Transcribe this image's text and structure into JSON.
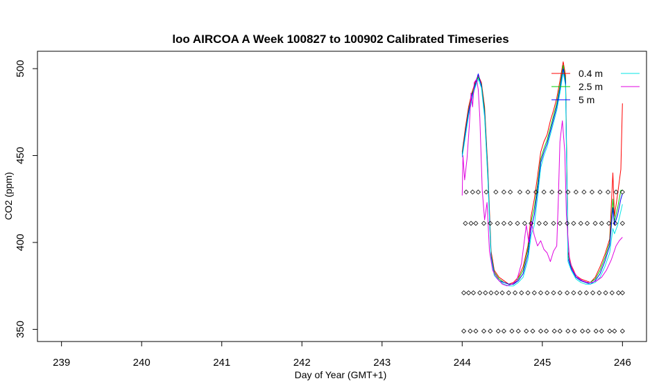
{
  "chart_data": {
    "type": "line",
    "title": "loo AIRCOA A  Week 100827 to 100902  Calibrated Timeseries",
    "xlabel": "Day of Year (GMT+1)",
    "ylabel": "CO2 (ppm)",
    "xlim": [
      238.7,
      246.3
    ],
    "ylim": [
      343,
      510
    ],
    "x_ticks": [
      239,
      240,
      241,
      242,
      243,
      244,
      245,
      246
    ],
    "y_ticks": [
      350,
      400,
      450,
      500
    ],
    "grid": false,
    "legend_position": "top-right",
    "legend": [
      {
        "name": "0.4 m",
        "color": "#ff0000"
      },
      {
        "name": "2.5 m",
        "color": "#00cd00"
      },
      {
        "name": "5 m",
        "color": "#0000ff"
      },
      {
        "name": "",
        "color": "#00e5e5"
      },
      {
        "name": "",
        "color": "#e000e0"
      }
    ],
    "series": [
      {
        "name": "0.4 m",
        "color": "#ff0000",
        "points": [
          [
            244.0,
            452
          ],
          [
            244.04,
            466
          ],
          [
            244.08,
            478
          ],
          [
            244.12,
            486
          ],
          [
            244.16,
            492
          ],
          [
            244.2,
            496
          ],
          [
            244.24,
            492
          ],
          [
            244.28,
            478
          ],
          [
            244.32,
            442
          ],
          [
            244.36,
            395
          ],
          [
            244.4,
            384
          ],
          [
            244.46,
            380
          ],
          [
            244.52,
            378
          ],
          [
            244.58,
            376
          ],
          [
            244.64,
            377
          ],
          [
            244.7,
            380
          ],
          [
            244.76,
            386
          ],
          [
            244.82,
            398
          ],
          [
            244.86,
            415
          ],
          [
            244.9,
            425
          ],
          [
            244.94,
            438
          ],
          [
            244.98,
            452
          ],
          [
            245.02,
            458
          ],
          [
            245.06,
            462
          ],
          [
            245.1,
            470
          ],
          [
            245.14,
            476
          ],
          [
            245.18,
            483
          ],
          [
            245.22,
            493
          ],
          [
            245.26,
            504
          ],
          [
            245.29,
            496
          ],
          [
            245.32,
            395
          ],
          [
            245.36,
            387
          ],
          [
            245.42,
            381
          ],
          [
            245.48,
            379
          ],
          [
            245.54,
            378
          ],
          [
            245.6,
            377
          ],
          [
            245.66,
            380
          ],
          [
            245.72,
            386
          ],
          [
            245.78,
            393
          ],
          [
            245.84,
            402
          ],
          [
            245.88,
            440
          ],
          [
            245.9,
            415
          ],
          [
            245.94,
            428
          ],
          [
            245.98,
            442
          ],
          [
            246.0,
            480
          ]
        ]
      },
      {
        "name": "2.5 m",
        "color": "#00cd00",
        "points": [
          [
            244.0,
            451
          ],
          [
            244.04,
            464
          ],
          [
            244.08,
            476
          ],
          [
            244.12,
            485
          ],
          [
            244.16,
            491
          ],
          [
            244.2,
            495
          ],
          [
            244.24,
            491
          ],
          [
            244.28,
            476
          ],
          [
            244.32,
            440
          ],
          [
            244.36,
            393
          ],
          [
            244.4,
            383
          ],
          [
            244.46,
            379
          ],
          [
            244.52,
            377
          ],
          [
            244.58,
            376
          ],
          [
            244.64,
            376
          ],
          [
            244.7,
            379
          ],
          [
            244.76,
            384
          ],
          [
            244.82,
            396
          ],
          [
            244.86,
            412
          ],
          [
            244.9,
            420
          ],
          [
            244.94,
            433
          ],
          [
            244.98,
            448
          ],
          [
            245.02,
            454
          ],
          [
            245.06,
            459
          ],
          [
            245.1,
            466
          ],
          [
            245.14,
            473
          ],
          [
            245.18,
            480
          ],
          [
            245.22,
            490
          ],
          [
            245.26,
            502
          ],
          [
            245.29,
            494
          ],
          [
            245.32,
            393
          ],
          [
            245.36,
            386
          ],
          [
            245.42,
            380
          ],
          [
            245.48,
            378
          ],
          [
            245.54,
            377
          ],
          [
            245.6,
            377
          ],
          [
            245.66,
            379
          ],
          [
            245.72,
            384
          ],
          [
            245.78,
            391
          ],
          [
            245.84,
            400
          ],
          [
            245.88,
            425
          ],
          [
            245.9,
            412
          ],
          [
            245.94,
            420
          ],
          [
            245.98,
            430
          ],
          [
            246.0,
            430
          ]
        ]
      },
      {
        "name": "5 m",
        "color": "#0000ff",
        "points": [
          [
            244.0,
            450
          ],
          [
            244.04,
            463
          ],
          [
            244.08,
            475
          ],
          [
            244.12,
            484
          ],
          [
            244.16,
            490
          ],
          [
            244.2,
            497
          ],
          [
            244.24,
            490
          ],
          [
            244.28,
            474
          ],
          [
            244.32,
            438
          ],
          [
            244.36,
            392
          ],
          [
            244.4,
            382
          ],
          [
            244.46,
            378
          ],
          [
            244.52,
            377
          ],
          [
            244.58,
            376
          ],
          [
            244.64,
            376
          ],
          [
            244.7,
            378
          ],
          [
            244.76,
            382
          ],
          [
            244.82,
            393
          ],
          [
            244.86,
            408
          ],
          [
            244.9,
            416
          ],
          [
            244.94,
            430
          ],
          [
            244.98,
            446
          ],
          [
            245.02,
            452
          ],
          [
            245.06,
            457
          ],
          [
            245.1,
            464
          ],
          [
            245.14,
            471
          ],
          [
            245.18,
            478
          ],
          [
            245.22,
            488
          ],
          [
            245.26,
            500
          ],
          [
            245.29,
            492
          ],
          [
            245.32,
            391
          ],
          [
            245.36,
            385
          ],
          [
            245.42,
            380
          ],
          [
            245.48,
            378
          ],
          [
            245.54,
            377
          ],
          [
            245.6,
            376
          ],
          [
            245.66,
            378
          ],
          [
            245.72,
            382
          ],
          [
            245.78,
            389
          ],
          [
            245.84,
            398
          ],
          [
            245.88,
            420
          ],
          [
            245.9,
            410
          ],
          [
            245.94,
            416
          ],
          [
            245.98,
            425
          ],
          [
            246.0,
            428
          ]
        ]
      },
      {
        "name": "",
        "color": "#00e5e5",
        "points": [
          [
            244.0,
            449
          ],
          [
            244.04,
            461
          ],
          [
            244.08,
            473
          ],
          [
            244.12,
            482
          ],
          [
            244.16,
            489
          ],
          [
            244.2,
            494
          ],
          [
            244.24,
            489
          ],
          [
            244.28,
            472
          ],
          [
            244.32,
            436
          ],
          [
            244.36,
            391
          ],
          [
            244.4,
            381
          ],
          [
            244.46,
            378
          ],
          [
            244.52,
            376
          ],
          [
            244.58,
            375
          ],
          [
            244.64,
            375
          ],
          [
            244.7,
            377
          ],
          [
            244.76,
            380
          ],
          [
            244.82,
            390
          ],
          [
            244.86,
            404
          ],
          [
            244.9,
            410
          ],
          [
            244.94,
            426
          ],
          [
            244.98,
            443
          ],
          [
            245.02,
            450
          ],
          [
            245.06,
            455
          ],
          [
            245.1,
            462
          ],
          [
            245.14,
            469
          ],
          [
            245.18,
            476
          ],
          [
            245.22,
            486
          ],
          [
            245.26,
            498
          ],
          [
            245.29,
            490
          ],
          [
            245.32,
            389
          ],
          [
            245.36,
            384
          ],
          [
            245.42,
            379
          ],
          [
            245.48,
            377
          ],
          [
            245.54,
            376
          ],
          [
            245.6,
            376
          ],
          [
            245.66,
            377
          ],
          [
            245.72,
            380
          ],
          [
            245.78,
            386
          ],
          [
            245.84,
            394
          ],
          [
            245.88,
            408
          ],
          [
            245.9,
            405
          ],
          [
            245.94,
            410
          ],
          [
            245.98,
            418
          ],
          [
            246.0,
            422
          ]
        ]
      },
      {
        "name": "",
        "color": "#e000e0",
        "points": [
          [
            244.0,
            427
          ],
          [
            244.01,
            450
          ],
          [
            244.03,
            436
          ],
          [
            244.06,
            448
          ],
          [
            244.09,
            468
          ],
          [
            244.11,
            486
          ],
          [
            244.13,
            478
          ],
          [
            244.15,
            492
          ],
          [
            244.18,
            494
          ],
          [
            244.2,
            488
          ],
          [
            244.22,
            472
          ],
          [
            244.25,
            430
          ],
          [
            244.28,
            413
          ],
          [
            244.31,
            423
          ],
          [
            244.34,
            395
          ],
          [
            244.38,
            384
          ],
          [
            244.44,
            379
          ],
          [
            244.5,
            376
          ],
          [
            244.56,
            375
          ],
          [
            244.62,
            376
          ],
          [
            244.68,
            378
          ],
          [
            244.74,
            388
          ],
          [
            244.8,
            410
          ],
          [
            244.83,
            400
          ],
          [
            244.86,
            412
          ],
          [
            244.9,
            404
          ],
          [
            244.94,
            398
          ],
          [
            244.98,
            401
          ],
          [
            245.02,
            396
          ],
          [
            245.06,
            394
          ],
          [
            245.1,
            389
          ],
          [
            245.14,
            395
          ],
          [
            245.18,
            398
          ],
          [
            245.2,
            425
          ],
          [
            245.22,
            458
          ],
          [
            245.25,
            470
          ],
          [
            245.28,
            452
          ],
          [
            245.3,
            416
          ],
          [
            245.34,
            390
          ],
          [
            245.38,
            384
          ],
          [
            245.44,
            380
          ],
          [
            245.5,
            378
          ],
          [
            245.56,
            377
          ],
          [
            245.62,
            377
          ],
          [
            245.68,
            378
          ],
          [
            245.74,
            380
          ],
          [
            245.8,
            384
          ],
          [
            245.86,
            390
          ],
          [
            245.92,
            398
          ],
          [
            245.96,
            401
          ],
          [
            246.0,
            403
          ]
        ]
      }
    ],
    "markers": [
      {
        "level": 429,
        "x": [
          244.05,
          244.13,
          244.2,
          244.3,
          244.42,
          244.52,
          244.6,
          244.72,
          244.82,
          244.92,
          245.02,
          245.12,
          245.22,
          245.32,
          245.42,
          245.52,
          245.62,
          245.72,
          245.82,
          245.92,
          246.0
        ]
      },
      {
        "level": 411,
        "x": [
          244.04,
          244.11,
          244.17,
          244.27,
          244.35,
          244.44,
          244.52,
          244.6,
          244.69,
          244.78,
          244.86,
          244.96,
          245.04,
          245.14,
          245.22,
          245.31,
          245.39,
          245.48,
          245.56,
          245.66,
          245.74,
          245.83,
          245.91,
          246.0
        ]
      },
      {
        "level": 371,
        "x": [
          244.02,
          244.08,
          244.14,
          244.22,
          244.29,
          244.36,
          244.43,
          244.5,
          244.58,
          244.66,
          244.74,
          244.82,
          244.9,
          244.98,
          245.06,
          245.14,
          245.22,
          245.31,
          245.39,
          245.47,
          245.55,
          245.63,
          245.71,
          245.79,
          245.87,
          245.95,
          246.0
        ]
      },
      {
        "level": 349,
        "x": [
          244.02,
          244.1,
          244.17,
          244.27,
          244.35,
          244.45,
          244.52,
          244.62,
          244.7,
          244.8,
          244.88,
          244.98,
          245.05,
          245.15,
          245.22,
          245.32,
          245.4,
          245.5,
          245.57,
          245.67,
          245.74,
          245.84,
          245.9,
          246.0
        ]
      }
    ]
  }
}
